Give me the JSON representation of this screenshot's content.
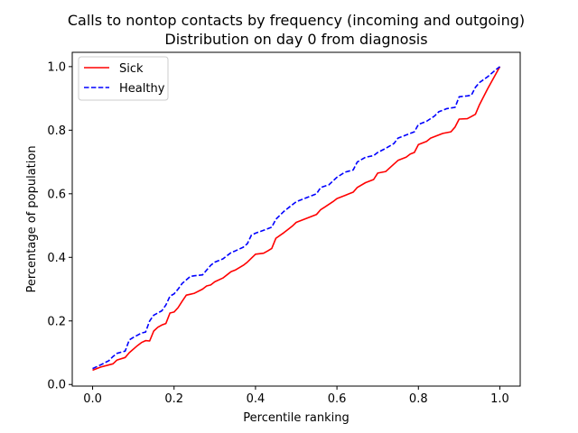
{
  "chart_data": {
    "type": "line",
    "title": "Calls to nontop contacts by frequency (incoming and outgoing)",
    "subtitle": "Distribution on day 0 from diagnosis",
    "xlabel": "Percentile ranking",
    "ylabel": "Percentage of population",
    "xlim": [
      -0.05,
      1.05
    ],
    "ylim": [
      -0.005,
      1.045
    ],
    "xticks": [
      "0.0",
      "0.2",
      "0.4",
      "0.6",
      "0.8",
      "1.0"
    ],
    "yticks": [
      "0.0",
      "0.2",
      "0.4",
      "0.6",
      "0.8",
      "1.0"
    ],
    "legend_position": "top-left",
    "grid": false,
    "series": [
      {
        "name": "Sick",
        "color": "#ff0000",
        "style": "solid",
        "x": [
          0.0,
          0.02,
          0.05,
          0.06,
          0.08,
          0.09,
          0.11,
          0.12,
          0.13,
          0.14,
          0.15,
          0.16,
          0.17,
          0.18,
          0.19,
          0.2,
          0.21,
          0.22,
          0.23,
          0.24,
          0.25,
          0.27,
          0.28,
          0.29,
          0.3,
          0.32,
          0.34,
          0.35,
          0.37,
          0.38,
          0.4,
          0.42,
          0.43,
          0.44,
          0.45,
          0.47,
          0.49,
          0.5,
          0.53,
          0.55,
          0.56,
          0.57,
          0.59,
          0.6,
          0.62,
          0.63,
          0.64,
          0.65,
          0.67,
          0.69,
          0.7,
          0.72,
          0.73,
          0.75,
          0.77,
          0.78,
          0.79,
          0.8,
          0.82,
          0.83,
          0.85,
          0.86,
          0.88,
          0.89,
          0.9,
          0.92,
          0.93,
          0.94,
          0.95,
          0.97,
          1.0
        ],
        "y": [
          0.045,
          0.055,
          0.065,
          0.077,
          0.085,
          0.1,
          0.122,
          0.132,
          0.138,
          0.137,
          0.168,
          0.18,
          0.187,
          0.192,
          0.225,
          0.228,
          0.242,
          0.262,
          0.281,
          0.284,
          0.287,
          0.3,
          0.31,
          0.313,
          0.323,
          0.335,
          0.355,
          0.36,
          0.375,
          0.385,
          0.41,
          0.413,
          0.42,
          0.428,
          0.46,
          0.478,
          0.498,
          0.51,
          0.525,
          0.535,
          0.55,
          0.558,
          0.575,
          0.585,
          0.595,
          0.6,
          0.605,
          0.62,
          0.635,
          0.645,
          0.665,
          0.67,
          0.682,
          0.705,
          0.715,
          0.725,
          0.73,
          0.755,
          0.765,
          0.775,
          0.785,
          0.79,
          0.795,
          0.81,
          0.835,
          0.836,
          0.843,
          0.85,
          0.88,
          0.93,
          1.0
        ]
      },
      {
        "name": "Healthy",
        "color": "#0000ff",
        "style": "dashed",
        "x": [
          0.0,
          0.02,
          0.04,
          0.05,
          0.06,
          0.08,
          0.09,
          0.1,
          0.12,
          0.13,
          0.14,
          0.15,
          0.16,
          0.17,
          0.18,
          0.19,
          0.2,
          0.21,
          0.22,
          0.24,
          0.25,
          0.27,
          0.29,
          0.3,
          0.32,
          0.33,
          0.34,
          0.35,
          0.37,
          0.38,
          0.39,
          0.4,
          0.42,
          0.44,
          0.45,
          0.47,
          0.49,
          0.5,
          0.52,
          0.55,
          0.56,
          0.58,
          0.6,
          0.62,
          0.64,
          0.65,
          0.67,
          0.69,
          0.7,
          0.72,
          0.74,
          0.75,
          0.77,
          0.79,
          0.8,
          0.82,
          0.84,
          0.85,
          0.87,
          0.89,
          0.9,
          0.92,
          0.93,
          0.94,
          0.95,
          0.97,
          0.99,
          1.0
        ],
        "y": [
          0.05,
          0.062,
          0.075,
          0.088,
          0.098,
          0.105,
          0.14,
          0.148,
          0.162,
          0.165,
          0.2,
          0.218,
          0.225,
          0.232,
          0.25,
          0.278,
          0.285,
          0.3,
          0.318,
          0.34,
          0.342,
          0.345,
          0.375,
          0.385,
          0.395,
          0.405,
          0.415,
          0.42,
          0.432,
          0.443,
          0.47,
          0.476,
          0.485,
          0.495,
          0.52,
          0.545,
          0.565,
          0.575,
          0.585,
          0.6,
          0.62,
          0.628,
          0.652,
          0.668,
          0.675,
          0.7,
          0.715,
          0.72,
          0.73,
          0.743,
          0.758,
          0.775,
          0.785,
          0.795,
          0.818,
          0.828,
          0.845,
          0.858,
          0.868,
          0.872,
          0.905,
          0.908,
          0.91,
          0.935,
          0.95,
          0.968,
          0.99,
          1.0
        ]
      }
    ]
  }
}
